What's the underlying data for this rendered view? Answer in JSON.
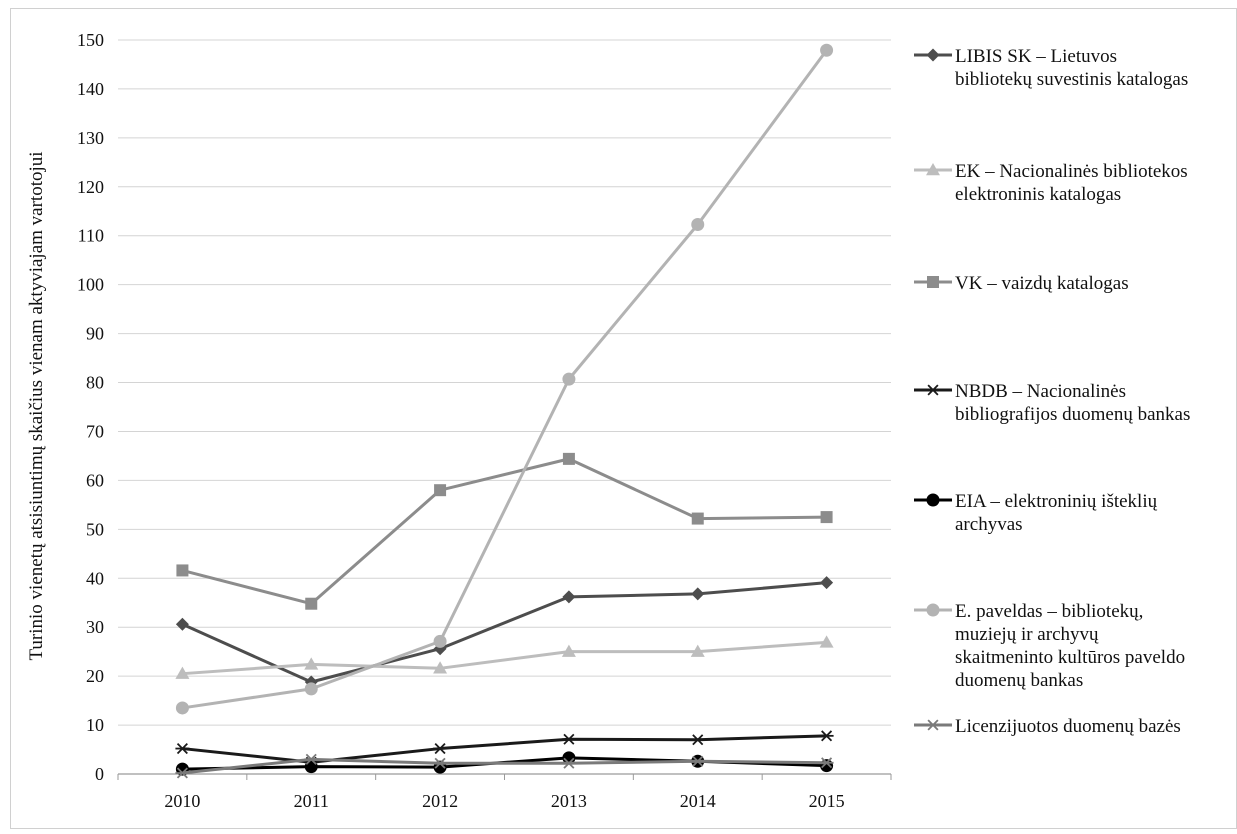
{
  "chart_data": {
    "type": "line",
    "title": "",
    "xlabel": "",
    "ylabel": "Turinio vienetų atsisiuntimų skaičius vienam aktyviajam vartotojui",
    "categories": [
      "2010",
      "2011",
      "2012",
      "2013",
      "2014",
      "2015"
    ],
    "ylim": [
      0,
      150
    ],
    "yticks": [
      "0",
      "10",
      "20",
      "30",
      "40",
      "50",
      "60",
      "70",
      "80",
      "90",
      "100",
      "110",
      "120",
      "130",
      "140",
      "150"
    ],
    "grid": true,
    "legend_position": "right",
    "series": [
      {
        "name_lines": [
          "LIBIS SK – Lietuvos",
          "bibliotekų suvestinis katalogas"
        ],
        "name": "LIBIS SK – Lietuvos bibliotekų suvestinis katalogas",
        "marker": "diamond",
        "color": "#4d4d4d",
        "values": [
          30.6,
          18.8,
          25.6,
          36.2,
          36.8,
          39.1
        ]
      },
      {
        "name_lines": [
          "EK – Nacionalinės bibliotekos",
          "elektroninis katalogas"
        ],
        "name": "EK – Nacionalinės bibliotekos elektroninis katalogas",
        "marker": "triangle",
        "color": "#bdbdbd",
        "values": [
          20.5,
          22.4,
          21.6,
          25.0,
          25.0,
          26.9
        ]
      },
      {
        "name_lines": [
          "VK – vaizdų katalogas"
        ],
        "name": "VK – vaizdų katalogas",
        "marker": "square",
        "color": "#8c8c8c",
        "values": [
          41.6,
          34.8,
          58.0,
          64.4,
          52.2,
          52.5
        ]
      },
      {
        "name_lines": [
          "NBDB – Nacionalinės",
          "bibliografijos duomenų bankas"
        ],
        "name": "NBDB – Nacionalinės bibliografijos duomenų bankas",
        "marker": "star",
        "color": "#1a1a1a",
        "values": [
          5.2,
          2.4,
          5.2,
          7.1,
          7.0,
          7.8
        ]
      },
      {
        "name_lines": [
          "EIA – elektroninių išteklių",
          "archyvas"
        ],
        "name": "EIA – elektroninių išteklių archyvas",
        "marker": "circle",
        "color": "#000000",
        "values": [
          1.0,
          1.5,
          1.4,
          3.3,
          2.6,
          1.7
        ]
      },
      {
        "name_lines": [
          "E. paveldas – bibliotekų,",
          "muziejų ir archyvų",
          "skaitmeninto kultūros paveldo",
          "duomenų bankas"
        ],
        "name": "E. paveldas – bibliotekų, muziejų ir archyvų skaitmeninto kultūros paveldo duomenų bankas",
        "marker": "circle",
        "color": "#b3b3b3",
        "values": [
          13.5,
          17.4,
          27.1,
          80.7,
          112.3,
          147.9
        ]
      },
      {
        "name_lines": [
          "Licenzijuotos duomenų bazės"
        ],
        "name": "Licenzijuotos duomenų bazės",
        "marker": "star",
        "color": "#7a7a7a",
        "values": [
          0.2,
          3.0,
          2.2,
          2.2,
          2.6,
          2.3
        ]
      }
    ]
  }
}
